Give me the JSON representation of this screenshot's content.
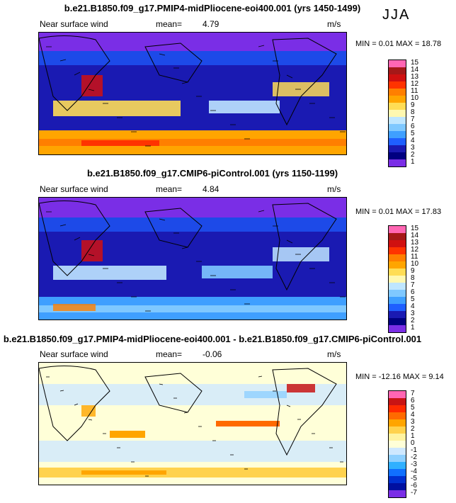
{
  "season": "JJA",
  "panels": [
    {
      "title": "b.e21.B1850.f09_g17.PMIP4-midPliocene-eoi400.001 (yrs 1450-1499)",
      "variable": "Near surface wind",
      "mean_label": "mean=",
      "mean_value": "4.79",
      "units": "m/s",
      "min_max": "MIN =    0.01  MAX =   18.78",
      "colorbar_labels": [
        "15",
        "14",
        "13",
        "12",
        "11",
        "10",
        "9",
        "8",
        "7",
        "6",
        "5",
        "4",
        "3",
        "2",
        "1"
      ]
    },
    {
      "title": "b.e21.B1850.f09_g17.CMIP6-piControl.001 (yrs 1150-1199)",
      "variable": "Near surface wind",
      "mean_label": "mean=",
      "mean_value": "4.84",
      "units": "m/s",
      "min_max": "MIN =    0.01  MAX =   17.83",
      "colorbar_labels": [
        "15",
        "14",
        "13",
        "12",
        "11",
        "10",
        "9",
        "8",
        "7",
        "6",
        "5",
        "4",
        "3",
        "2",
        "1"
      ]
    },
    {
      "title": "b.e21.B1850.f09_g17.PMIP4-midPliocene-eoi400.001 - b.e21.B1850.f09_g17.CMIP6-piControl.001",
      "variable": "Near surface wind",
      "mean_label": "mean=",
      "mean_value": "-0.06",
      "units": "m/s",
      "min_max": "MIN =  -12.16  MAX =    9.14",
      "colorbar_labels": [
        "7",
        "6",
        "5",
        "4",
        "3",
        "2",
        "1",
        "0",
        "-1",
        "-2",
        "-3",
        "-4",
        "-5",
        "-6",
        "-7"
      ]
    }
  ],
  "colors": {
    "abs_scale": [
      "#ff66b3",
      "#a51818",
      "#d01010",
      "#ff3300",
      "#ff7f00",
      "#ffa500",
      "#ffdd55",
      "#fff8b0",
      "#bfe6ff",
      "#7fc8ff",
      "#3f9fff",
      "#1f5fff",
      "#1a1ab2",
      "#000080",
      "#7a2ee6"
    ],
    "diff_scale": [
      "#ff66b3",
      "#c81414",
      "#ff2a00",
      "#ff6a00",
      "#ffa500",
      "#ffd24d",
      "#fff3a0",
      "#ffffd8",
      "#cfe8ff",
      "#8fd0ff",
      "#30b0ff",
      "#1070ff",
      "#0030d0",
      "#0010a0",
      "#7a2ee6"
    ]
  }
}
